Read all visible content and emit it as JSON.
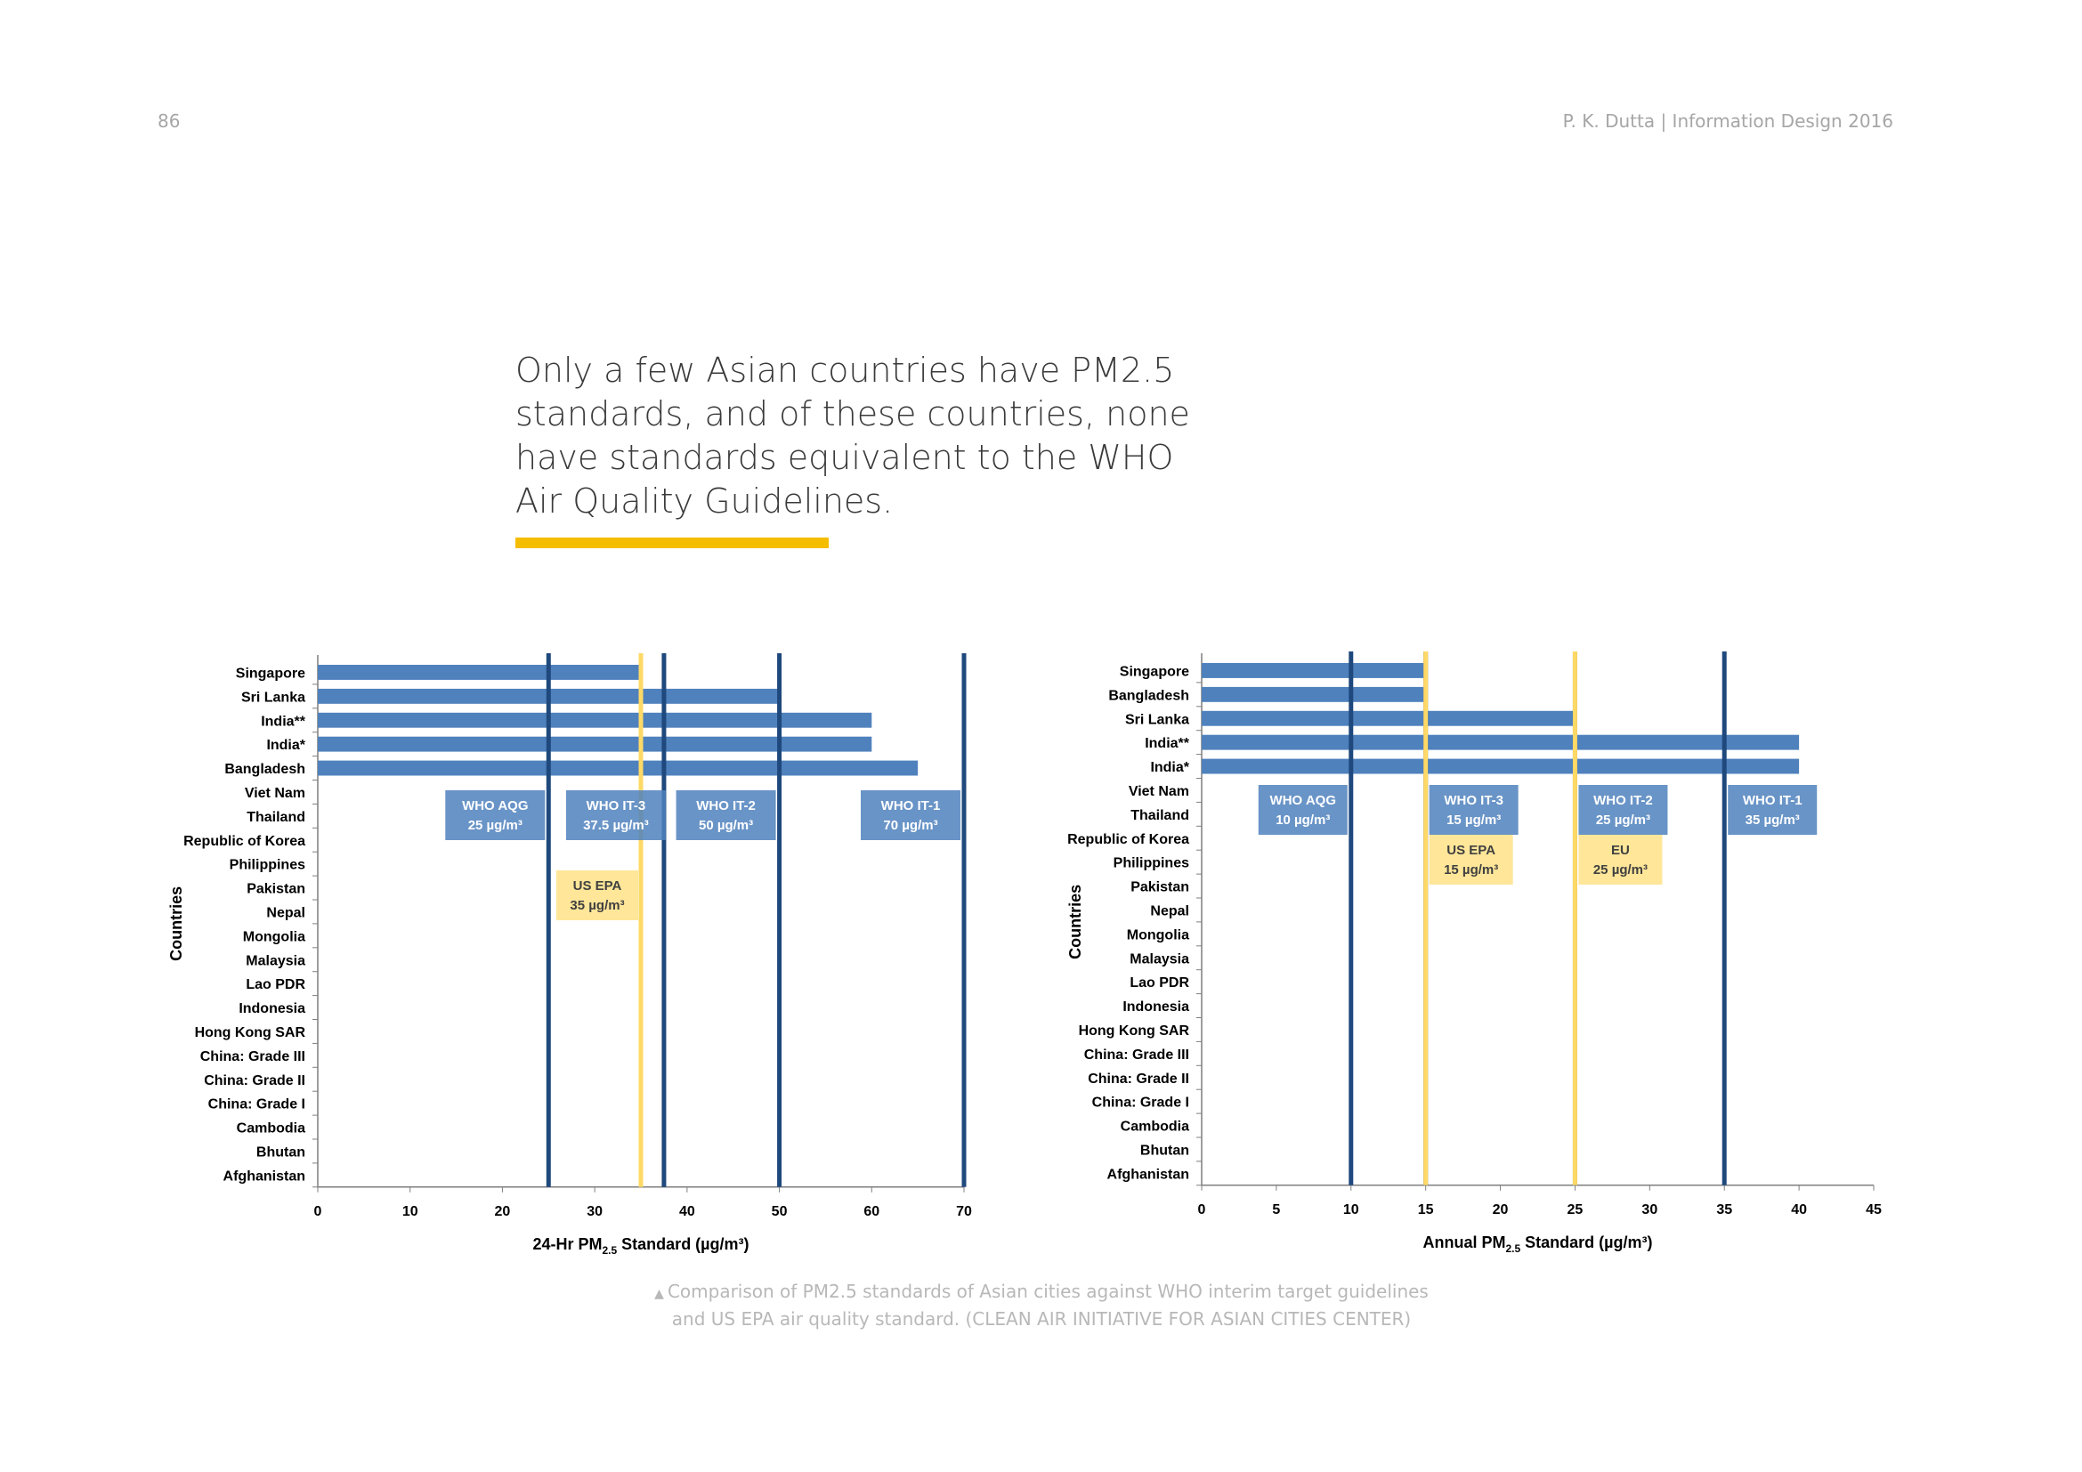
{
  "header": {
    "page_number": "86",
    "running_head": "P. K. Dutta | Information Design 2016"
  },
  "headline": "Only a few Asian countries have PM2.5 standards, and of these countries, none have standards equivalent to the WHO Air Quality Guidelines.",
  "caption": {
    "marker": "▲",
    "line1": "Comparison of PM2.5 standards of Asian cities against WHO interim target guidelines",
    "line2": "and US EPA air quality standard. (CLEAN AIR INITIATIVE FOR ASIAN CITIES CENTER)"
  },
  "colors": {
    "bar": "#4f81bd",
    "who_line": "#1f497d",
    "epa_line": "#ffd966",
    "who_box": "#4f81bd",
    "epa_box": "#ffe699",
    "accent": "#f5bd00"
  },
  "chart_data": [
    {
      "type": "bar",
      "orientation": "horizontal",
      "ylabel": "Countries",
      "xlabel": "24-Hr PM2.5 Standard (µg/m³)",
      "xlim": [
        0,
        70
      ],
      "xticks": [
        0,
        10,
        20,
        30,
        40,
        50,
        60,
        70
      ],
      "categories": [
        "Singapore",
        "Sri Lanka",
        "India**",
        "India*",
        "Bangladesh",
        "Viet Nam",
        "Thailand",
        "Republic of Korea",
        "Philippines",
        "Pakistan",
        "Nepal",
        "Mongolia",
        "Malaysia",
        "Lao PDR",
        "Indonesia",
        "Hong Kong SAR",
        "China: Grade III",
        "China: Grade II",
        "China: Grade I",
        "Cambodia",
        "Bhutan",
        "Afghanistan"
      ],
      "values": [
        35,
        50,
        60,
        60,
        65,
        null,
        null,
        null,
        null,
        null,
        null,
        null,
        null,
        null,
        null,
        null,
        null,
        null,
        null,
        null,
        null,
        null
      ],
      "reference_lines": [
        {
          "kind": "who",
          "value": 25,
          "label": "WHO AQG",
          "sublabel": "25 µg/m³"
        },
        {
          "kind": "who",
          "value": 37.5,
          "label": "WHO IT-3",
          "sublabel": "37.5 µg/m³"
        },
        {
          "kind": "who",
          "value": 50,
          "label": "WHO IT-2",
          "sublabel": "50 µg/m³"
        },
        {
          "kind": "who",
          "value": 70,
          "label": "WHO IT-1",
          "sublabel": "70 µg/m³"
        },
        {
          "kind": "epa",
          "value": 35,
          "label": "US EPA",
          "sublabel": "35 µg/m³"
        }
      ]
    },
    {
      "type": "bar",
      "orientation": "horizontal",
      "ylabel": "Countries",
      "xlabel": "Annual PM2.5 Standard (µg/m³)",
      "xlim": [
        0,
        45
      ],
      "xticks": [
        0,
        5,
        10,
        15,
        20,
        25,
        30,
        35,
        40,
        45
      ],
      "categories": [
        "Singapore",
        "Bangladesh",
        "Sri Lanka",
        "India**",
        "India*",
        "Viet Nam",
        "Thailand",
        "Republic of Korea",
        "Philippines",
        "Pakistan",
        "Nepal",
        "Mongolia",
        "Malaysia",
        "Lao PDR",
        "Indonesia",
        "Hong Kong SAR",
        "China: Grade III",
        "China: Grade II",
        "China: Grade I",
        "Cambodia",
        "Bhutan",
        "Afghanistan"
      ],
      "values": [
        15,
        15,
        25,
        40,
        40,
        null,
        null,
        null,
        null,
        null,
        null,
        null,
        null,
        null,
        null,
        null,
        null,
        null,
        null,
        null,
        null,
        null
      ],
      "reference_lines": [
        {
          "kind": "who",
          "value": 10,
          "label": "WHO AQG",
          "sublabel": "10 µg/m³"
        },
        {
          "kind": "who",
          "value": 15,
          "label": "WHO IT-3",
          "sublabel": "15 µg/m³"
        },
        {
          "kind": "who",
          "value": 25,
          "label": "WHO IT-2",
          "sublabel": "25 µg/m³"
        },
        {
          "kind": "who",
          "value": 35,
          "label": "WHO IT-1",
          "sublabel": "35 µg/m³"
        },
        {
          "kind": "epa",
          "value": 15,
          "label": "US EPA",
          "sublabel": "15 µg/m³"
        },
        {
          "kind": "epa",
          "value": 25,
          "label": "EU",
          "sublabel": "25 µg/m³"
        }
      ]
    }
  ]
}
